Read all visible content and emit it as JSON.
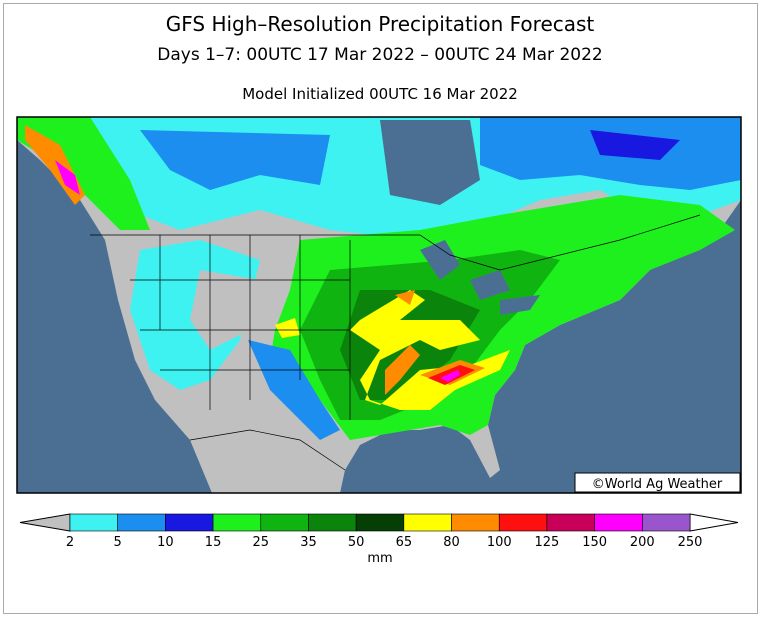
{
  "header": {
    "title": "GFS High–Resolution Precipitation Forecast",
    "subtitle": "Days 1–7: 00UTC 17 Mar 2022 – 00UTC 24 Mar 2022",
    "init": "Model Initialized 00UTC 16 Mar 2022"
  },
  "map": {
    "credit": "©World Ag Weather"
  },
  "legend": {
    "labels": [
      "2",
      "5",
      "10",
      "15",
      "25",
      "35",
      "50",
      "65",
      "80",
      "100",
      "125",
      "150",
      "200",
      "250"
    ],
    "below_color": "#c0c0c0",
    "above_color": "#ffffff",
    "colors": [
      "#3ef2f2",
      "#1c8ef0",
      "#1818e0",
      "#1ef01e",
      "#10b410",
      "#0a840a",
      "#053f05",
      "#ffff00",
      "#ff8c00",
      "#ff1010",
      "#c8005a",
      "#ff00ff",
      "#9a55cc"
    ],
    "unit": "mm"
  }
}
